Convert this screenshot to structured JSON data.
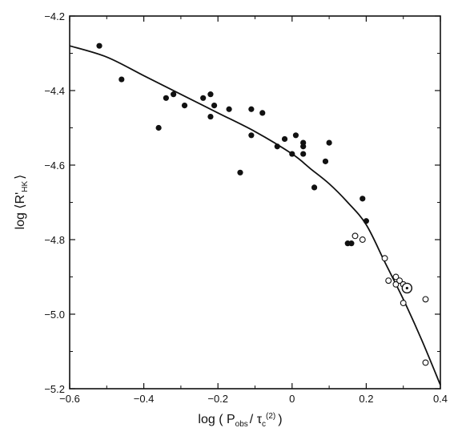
{
  "chart_data": {
    "type": "scatter",
    "title": "",
    "xlabel": "log ( P_obs / τ_c^(2) )",
    "ylabel": "log ⟨R'_HK⟩",
    "xlabel_parts": {
      "main": "log ( P",
      "sub1": "obs",
      "mid": "/ τ",
      "sub2": "c",
      "sup": "(2)",
      "end": ")"
    },
    "ylabel_parts": {
      "main": "log ⟨R'",
      "sub": "HK",
      "end": "⟩"
    },
    "xlim": [
      -0.6,
      0.4
    ],
    "ylim": [
      -5.2,
      -4.2
    ],
    "xticks": [
      -0.6,
      -0.4,
      -0.2,
      0,
      0.2,
      0.4
    ],
    "xtick_labels": [
      "−0.6",
      "−0.4",
      "−0.2",
      "0",
      "0.2",
      "0.4"
    ],
    "yticks": [
      -5.2,
      -5.0,
      -4.8,
      -4.6,
      -4.4,
      -4.2
    ],
    "ytick_labels": [
      "−5.2",
      "−5.0",
      "−4.8",
      "−4.6",
      "−4.4",
      "−4.2"
    ],
    "grid": false,
    "series": [
      {
        "marker": "filled-circle",
        "points": [
          [
            -0.52,
            -4.28
          ],
          [
            -0.46,
            -4.37
          ],
          [
            -0.36,
            -4.5
          ],
          [
            -0.34,
            -4.42
          ],
          [
            -0.32,
            -4.41
          ],
          [
            -0.29,
            -4.44
          ],
          [
            -0.24,
            -4.42
          ],
          [
            -0.22,
            -4.41
          ],
          [
            -0.22,
            -4.47
          ],
          [
            -0.21,
            -4.44
          ],
          [
            -0.17,
            -4.45
          ],
          [
            -0.14,
            -4.62
          ],
          [
            -0.11,
            -4.45
          ],
          [
            -0.11,
            -4.52
          ],
          [
            -0.08,
            -4.46
          ],
          [
            -0.04,
            -4.55
          ],
          [
            -0.02,
            -4.53
          ],
          [
            0.0,
            -4.57
          ],
          [
            0.01,
            -4.52
          ],
          [
            0.03,
            -4.54
          ],
          [
            0.03,
            -4.55
          ],
          [
            0.03,
            -4.57
          ],
          [
            0.06,
            -4.66
          ],
          [
            0.09,
            -4.59
          ],
          [
            0.1,
            -4.54
          ],
          [
            0.15,
            -4.81
          ],
          [
            0.16,
            -4.81
          ],
          [
            0.19,
            -4.69
          ],
          [
            0.2,
            -4.75
          ]
        ]
      },
      {
        "marker": "open-circle",
        "points": [
          [
            0.17,
            -4.79
          ],
          [
            0.19,
            -4.8
          ],
          [
            0.25,
            -4.85
          ],
          [
            0.26,
            -4.91
          ],
          [
            0.28,
            -4.9
          ],
          [
            0.28,
            -4.92
          ],
          [
            0.29,
            -4.91
          ],
          [
            0.3,
            -4.92
          ],
          [
            0.3,
            -4.97
          ],
          [
            0.36,
            -4.96
          ],
          [
            0.36,
            -5.13
          ]
        ]
      },
      {
        "marker": "open-circle-large-dot",
        "points": [
          [
            0.31,
            -4.93
          ]
        ]
      }
    ],
    "fit_curve": [
      [
        -0.6,
        -4.28
      ],
      [
        -0.5,
        -4.31
      ],
      [
        -0.4,
        -4.36
      ],
      [
        -0.3,
        -4.41
      ],
      [
        -0.2,
        -4.46
      ],
      [
        -0.1,
        -4.51
      ],
      [
        0.0,
        -4.57
      ],
      [
        0.05,
        -4.61
      ],
      [
        0.1,
        -4.65
      ],
      [
        0.15,
        -4.7
      ],
      [
        0.2,
        -4.76
      ],
      [
        0.25,
        -4.86
      ],
      [
        0.3,
        -4.96
      ],
      [
        0.35,
        -5.07
      ],
      [
        0.4,
        -5.19
      ]
    ]
  }
}
